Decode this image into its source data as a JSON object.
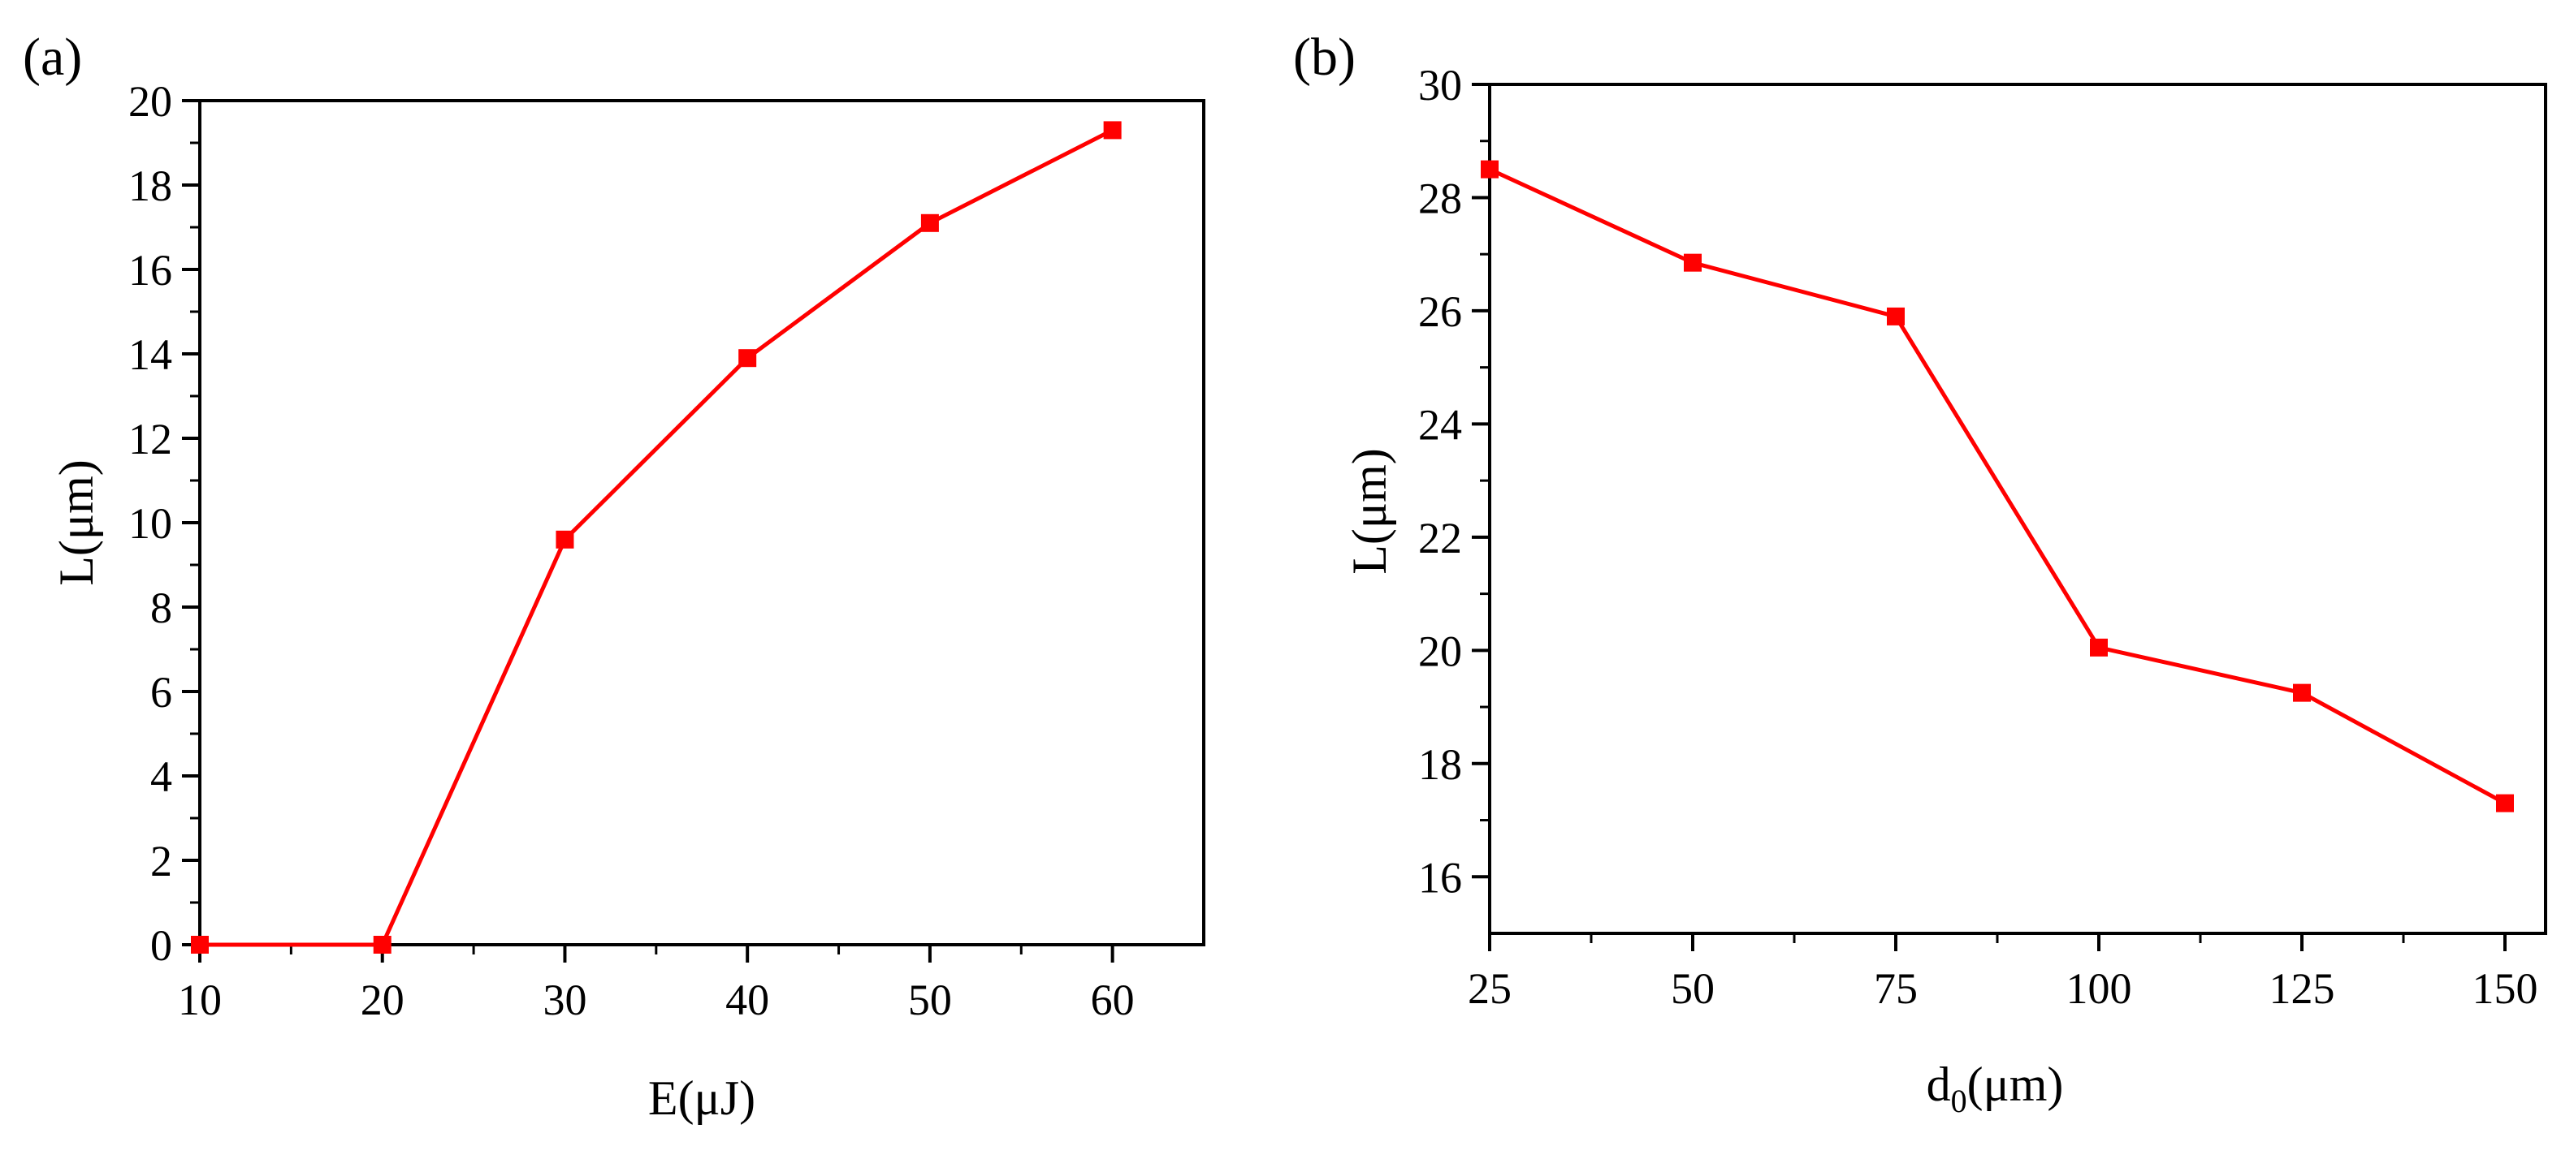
{
  "colors": {
    "series": "#ff0000",
    "axes": "#000000",
    "background": "#ffffff"
  },
  "chart_data": [
    {
      "panel": "(a)",
      "type": "line",
      "marker": "square",
      "xlabel": "E(μJ)",
      "ylabel": "L(μm)",
      "xlim": [
        10,
        65
      ],
      "ylim": [
        0,
        20
      ],
      "xticks": [
        "10",
        "20",
        "30",
        "40",
        "50",
        "60"
      ],
      "yticks": [
        "0",
        "2",
        "4",
        "6",
        "8",
        "10",
        "12",
        "14",
        "16",
        "18",
        "20"
      ],
      "grid": false,
      "x": [
        10,
        20,
        30,
        40,
        50,
        60
      ],
      "y": [
        0,
        0,
        9.6,
        13.9,
        17.1,
        19.3
      ]
    },
    {
      "panel": "(b)",
      "type": "line",
      "marker": "square",
      "xlabel": "d",
      "xlabel_sub": "0",
      "xlabel_rest": "(μm)",
      "ylabel": "L(μm)",
      "xlim": [
        25,
        155
      ],
      "ylim": [
        15,
        30
      ],
      "xticks": [
        "25",
        "50",
        "75",
        "100",
        "125",
        "150"
      ],
      "yticks": [
        "16",
        "18",
        "20",
        "22",
        "24",
        "26",
        "28",
        "30"
      ],
      "grid": false,
      "x": [
        25,
        50,
        75,
        100,
        125,
        150
      ],
      "y": [
        28.5,
        26.85,
        25.9,
        20.05,
        19.25,
        17.3
      ]
    }
  ]
}
